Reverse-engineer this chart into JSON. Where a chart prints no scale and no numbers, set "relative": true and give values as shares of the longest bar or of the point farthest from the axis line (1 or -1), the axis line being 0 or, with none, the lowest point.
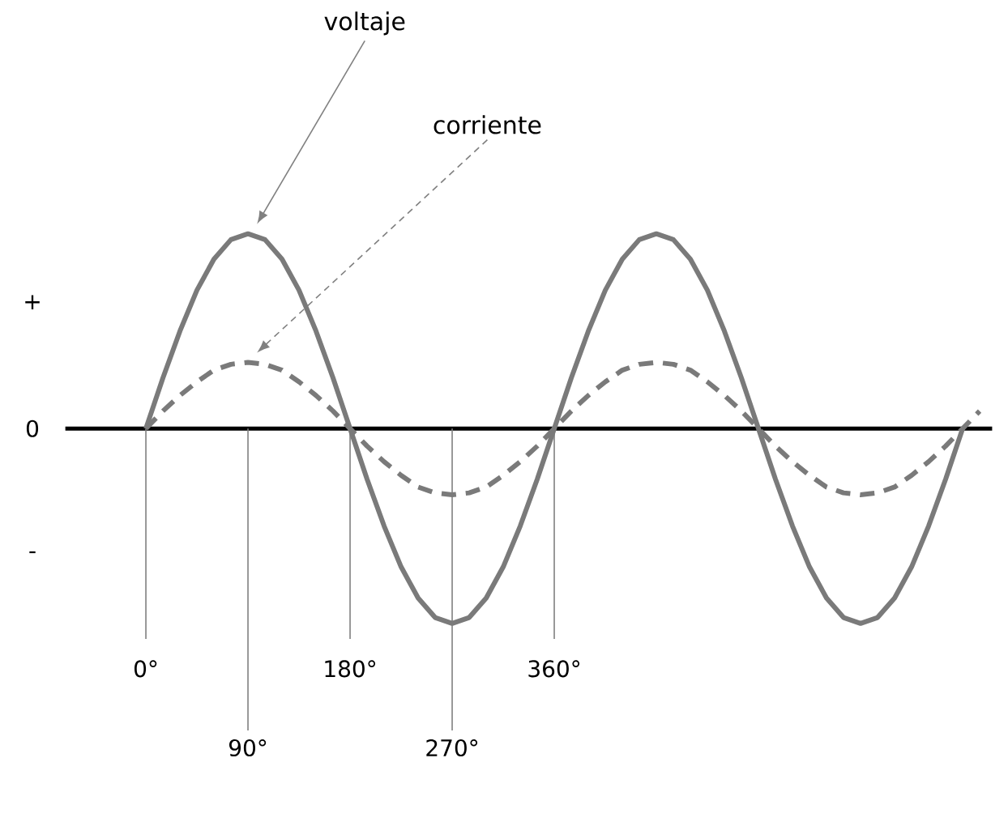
{
  "chart_data": {
    "type": "line",
    "relative": true,
    "marker": "none",
    "xlim": [
      -71,
      746
    ],
    "xticks": [
      {
        "value": 0,
        "label": "0°"
      },
      {
        "value": 180,
        "label": "180°"
      },
      {
        "value": 360,
        "label": "360°"
      }
    ],
    "ref_lines": [
      {
        "axis": "x",
        "value": 0,
        "color": "#808080"
      },
      {
        "axis": "x",
        "value": 90,
        "label": "90°",
        "color": "#808080"
      },
      {
        "axis": "x",
        "value": 180,
        "color": "#808080"
      },
      {
        "axis": "x",
        "value": 270,
        "label": "270°",
        "color": "#808080"
      },
      {
        "axis": "x",
        "value": 360,
        "color": "#808080"
      }
    ],
    "x": [
      0,
      15,
      30,
      45,
      60,
      75,
      90,
      105,
      120,
      135,
      150,
      165,
      180,
      195,
      210,
      225,
      240,
      255,
      270,
      285,
      300,
      315,
      330,
      345,
      360,
      375,
      390,
      405,
      420,
      435,
      450,
      465,
      480,
      495,
      510,
      525,
      540,
      555,
      570,
      585,
      600,
      615,
      630,
      645,
      660,
      675,
      690,
      705,
      720
    ],
    "series": [
      {
        "color": "#7a7a7a",
        "line_style": "solid",
        "values": [
          0,
          0.26,
          0.5,
          0.71,
          0.87,
          0.97,
          1,
          0.97,
          0.87,
          0.71,
          0.5,
          0.26,
          0,
          -0.26,
          -0.5,
          -0.71,
          -0.87,
          -0.97,
          -1,
          -0.97,
          -0.87,
          -0.71,
          -0.5,
          -0.26,
          0,
          0.26,
          0.5,
          0.71,
          0.87,
          0.97,
          1,
          0.97,
          0.87,
          0.71,
          0.5,
          0.26,
          0,
          -0.26,
          -0.5,
          -0.71,
          -0.87,
          -0.97,
          -1,
          -0.97,
          -0.87,
          -0.71,
          -0.5,
          -0.26,
          0
        ]
      },
      {
        "color": "#7a7a7a",
        "line_style": "dashed",
        "x": [
          0,
          15,
          30,
          45,
          60,
          75,
          90,
          105,
          120,
          135,
          150,
          165,
          180,
          195,
          210,
          225,
          240,
          255,
          270,
          285,
          300,
          315,
          330,
          345,
          360,
          375,
          390,
          405,
          420,
          435,
          450,
          465,
          480,
          495,
          510,
          525,
          540,
          555,
          570,
          585,
          600,
          615,
          630,
          645,
          660,
          675,
          690,
          705,
          720,
          735
        ],
        "values": [
          0,
          0.09,
          0.17,
          0.24,
          0.3,
          0.33,
          0.34,
          0.33,
          0.3,
          0.24,
          0.17,
          0.09,
          0,
          -0.09,
          -0.17,
          -0.24,
          -0.3,
          -0.33,
          -0.34,
          -0.33,
          -0.3,
          -0.24,
          -0.17,
          -0.09,
          0,
          0.09,
          0.17,
          0.24,
          0.3,
          0.33,
          0.34,
          0.33,
          0.3,
          0.24,
          0.17,
          0.09,
          0,
          -0.09,
          -0.17,
          -0.24,
          -0.3,
          -0.33,
          -0.34,
          -0.33,
          -0.3,
          -0.24,
          -0.17,
          -0.09,
          0,
          0.09
        ]
      }
    ],
    "annotations": [
      "voltaje",
      "corriente",
      "+",
      "0",
      "-"
    ]
  }
}
